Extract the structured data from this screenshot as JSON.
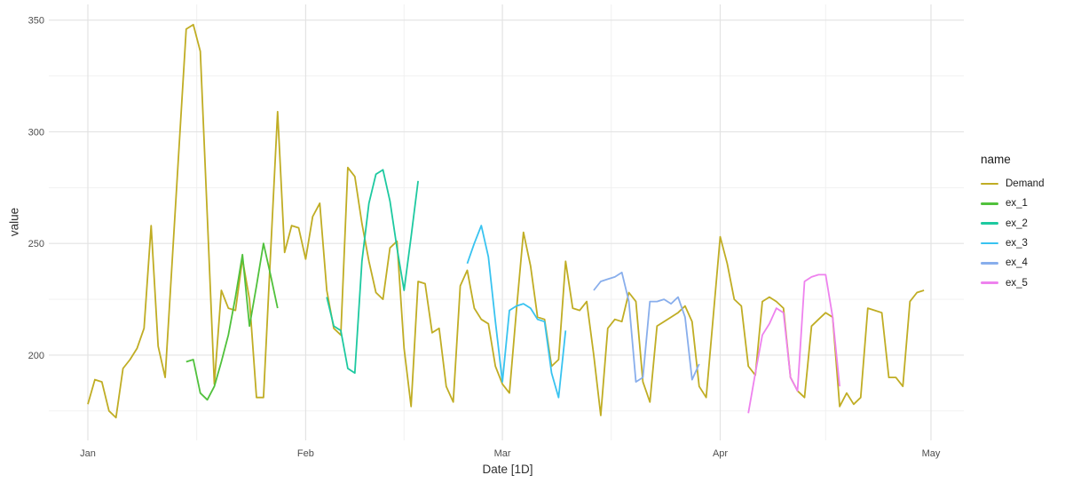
{
  "chart_data": {
    "type": "line",
    "title": "",
    "xlabel": "Date [1D]",
    "ylabel": "value",
    "legend_title": "name",
    "legend_position": "right",
    "grid": true,
    "x_axis": {
      "tick_labels": [
        "Jan",
        "Feb",
        "Mar",
        "Apr",
        "May"
      ],
      "tick_days": [
        0,
        31,
        59,
        90,
        120
      ],
      "unit": "1 day per point"
    },
    "y_axis": {
      "tick_labels": [
        "200",
        "250",
        "300",
        "350"
      ],
      "ticks": [
        200,
        250,
        300,
        350
      ],
      "minor_ticks": [
        175,
        225,
        275,
        325
      ],
      "range_approx": [
        162,
        357
      ]
    },
    "series": [
      {
        "name": "Demand",
        "color": "#C0AD24",
        "start_day": 0,
        "start_label": "Jan 1",
        "values": [
          178,
          189,
          188,
          175,
          172,
          194,
          198,
          203,
          212,
          258,
          204,
          190,
          242,
          294,
          346,
          348,
          336,
          262,
          187,
          229,
          221,
          220,
          243,
          225,
          181,
          181,
          245,
          309,
          246,
          258,
          257,
          243,
          262,
          268,
          229,
          212,
          209,
          284,
          280,
          259,
          242,
          228,
          225,
          248,
          251,
          203,
          177,
          233,
          232,
          210,
          212,
          186,
          179,
          231,
          238,
          221,
          216,
          214,
          195,
          187,
          183,
          220,
          255,
          240,
          217,
          216,
          195,
          198,
          242,
          221,
          220,
          224,
          200,
          173,
          212,
          216,
          215,
          228,
          224,
          188,
          179,
          213,
          215,
          217,
          219,
          222,
          215,
          186,
          181,
          217,
          253,
          241,
          225,
          222,
          195,
          191,
          224,
          226,
          224,
          221,
          190,
          184,
          181,
          213,
          216,
          219,
          217,
          177,
          183,
          178,
          181,
          221,
          220,
          219,
          190,
          190,
          186,
          224,
          228,
          229
        ]
      },
      {
        "name": "ex_1",
        "color": "#50C13C",
        "start_day": 14,
        "start_label": "Jan 15",
        "values": [
          197,
          198,
          183,
          180,
          186,
          197,
          209,
          226,
          245,
          213,
          231,
          250,
          236,
          221
        ]
      },
      {
        "name": "ex_2",
        "color": "#1DC9A0",
        "start_day": 34,
        "start_label": "Feb 4",
        "values": [
          226,
          213,
          211,
          194,
          192,
          242,
          268,
          281,
          283,
          269,
          248,
          229,
          253,
          278
        ]
      },
      {
        "name": "ex_3",
        "color": "#38C3F0",
        "start_day": 54,
        "start_label": "Feb 24",
        "values": [
          241,
          250,
          258,
          244,
          215,
          188,
          220,
          222,
          223,
          221,
          216,
          215,
          192,
          181,
          211
        ]
      },
      {
        "name": "ex_4",
        "color": "#88AEEC",
        "start_day": 72,
        "start_label": "Mar 14",
        "values": [
          229,
          233,
          234,
          235,
          237,
          224,
          188,
          190,
          224,
          224,
          225,
          223,
          226,
          217,
          189,
          196
        ]
      },
      {
        "name": "ex_5",
        "color": "#EE82EE",
        "start_day": 94,
        "start_label": "Apr 5",
        "values": [
          174,
          192,
          209,
          214,
          221,
          219,
          190,
          184,
          233,
          235,
          236,
          236,
          217,
          186
        ]
      }
    ],
    "style": {
      "background": "#ffffff",
      "grid_major_color": "#e3e3e3",
      "grid_minor_color": "#efefef",
      "tick_label_color": "#4d4d4d",
      "axis_title_color": "#303030"
    }
  }
}
